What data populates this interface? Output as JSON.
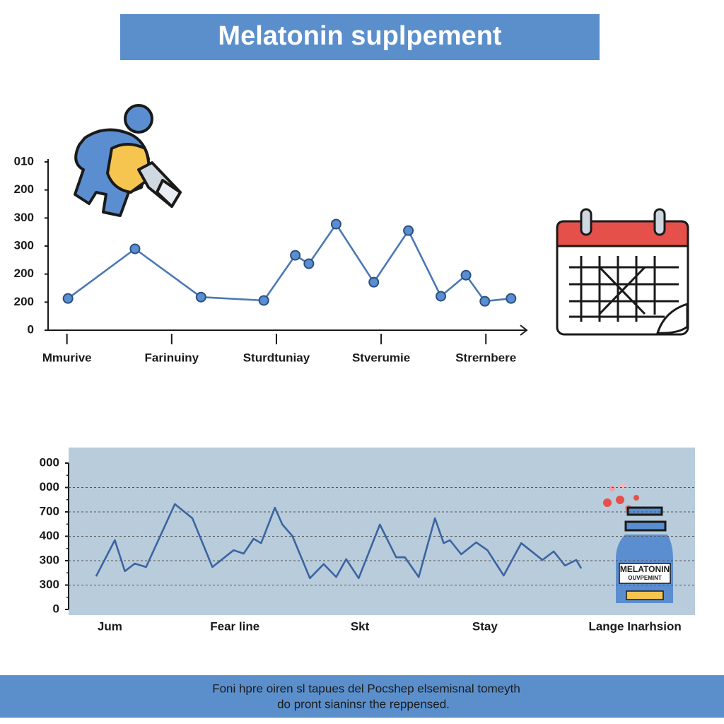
{
  "header": {
    "title": "Melatonin suplpement"
  },
  "chart_data": [
    {
      "type": "line",
      "color": "#4a78b5",
      "marker_color": "#5b8ed0",
      "grid": false,
      "x": [
        0.01,
        0.65,
        1.28,
        1.88,
        2.18,
        2.31,
        2.57,
        2.93,
        3.26,
        3.57,
        3.81,
        3.99,
        4.24
      ],
      "values": [
        1.13,
        2.9,
        1.18,
        1.06,
        2.67,
        2.37,
        3.78,
        1.71,
        3.55,
        1.21,
        1.96,
        1.03,
        1.13
      ],
      "xlim": [
        -0.18,
        4.39
      ],
      "xticks": [
        {
          "value": 0,
          "label": "Mmurive"
        },
        {
          "value": 1,
          "label": "Farinuiny"
        },
        {
          "value": 2,
          "label": "Sturdtuniay"
        },
        {
          "value": 3,
          "label": "Stverumie"
        },
        {
          "value": 4,
          "label": "Strernbere"
        }
      ],
      "ylim": [
        0,
        6
      ],
      "yticks": [
        0,
        {
          "value": 1,
          "label": "200"
        },
        {
          "value": 2,
          "label": "200"
        },
        {
          "value": 3,
          "label": "300"
        },
        {
          "value": 4,
          "label": "300"
        },
        {
          "value": 5,
          "label": "200"
        },
        {
          "value": 6,
          "label": "010"
        }
      ]
    },
    {
      "type": "line",
      "color": "#3c64a0",
      "grid": true,
      "x": [
        -0.11,
        0.04,
        0.12,
        0.2,
        0.29,
        0.52,
        0.66,
        0.82,
        0.99,
        1.07,
        1.15,
        1.21,
        1.32,
        1.38,
        1.46,
        1.6,
        1.71,
        1.81,
        1.89,
        1.99,
        2.16,
        2.29,
        2.36,
        2.47,
        2.6,
        2.67,
        2.72,
        2.81,
        2.93,
        3.02,
        3.15,
        3.29,
        3.46,
        3.55,
        3.64,
        3.73,
        3.77
      ],
      "values": [
        1.36,
        2.84,
        1.57,
        1.88,
        1.74,
        4.32,
        3.74,
        1.74,
        2.43,
        2.29,
        2.9,
        2.72,
        4.17,
        3.48,
        3.01,
        1.28,
        1.86,
        1.33,
        2.06,
        1.28,
        3.48,
        2.14,
        2.14,
        1.33,
        3.74,
        2.72,
        2.84,
        2.26,
        2.75,
        2.43,
        1.39,
        2.72,
        2.03,
        2.38,
        1.8,
        2.03,
        1.68
      ],
      "xlim": [
        -0.33,
        4.68
      ],
      "xticks": [
        {
          "value": 0,
          "label": "Jum"
        },
        {
          "value": 1,
          "label": "Fear line"
        },
        {
          "value": 2,
          "label": "Skt"
        },
        {
          "value": 3,
          "label": "Stay"
        },
        {
          "value": 4.2,
          "label": "Lange Inarhsion"
        }
      ],
      "ylim": [
        0,
        6
      ],
      "yticks": [
        0,
        {
          "value": 1,
          "label": "300"
        },
        {
          "value": 2,
          "label": "300"
        },
        {
          "value": 3,
          "label": "400"
        },
        {
          "value": 4,
          "label": "700"
        },
        {
          "value": 5,
          "label": "000"
        },
        {
          "value": 6,
          "label": "000"
        }
      ]
    }
  ],
  "bottle_label": {
    "line1": "MELATONIN",
    "line2": "OUVPEMINT"
  },
  "footer": {
    "line1": "Foni hpre oiren sl tapues del Pocshep elsemisnal tomeyth",
    "line2": "do pront sianinsr the reppensed."
  }
}
